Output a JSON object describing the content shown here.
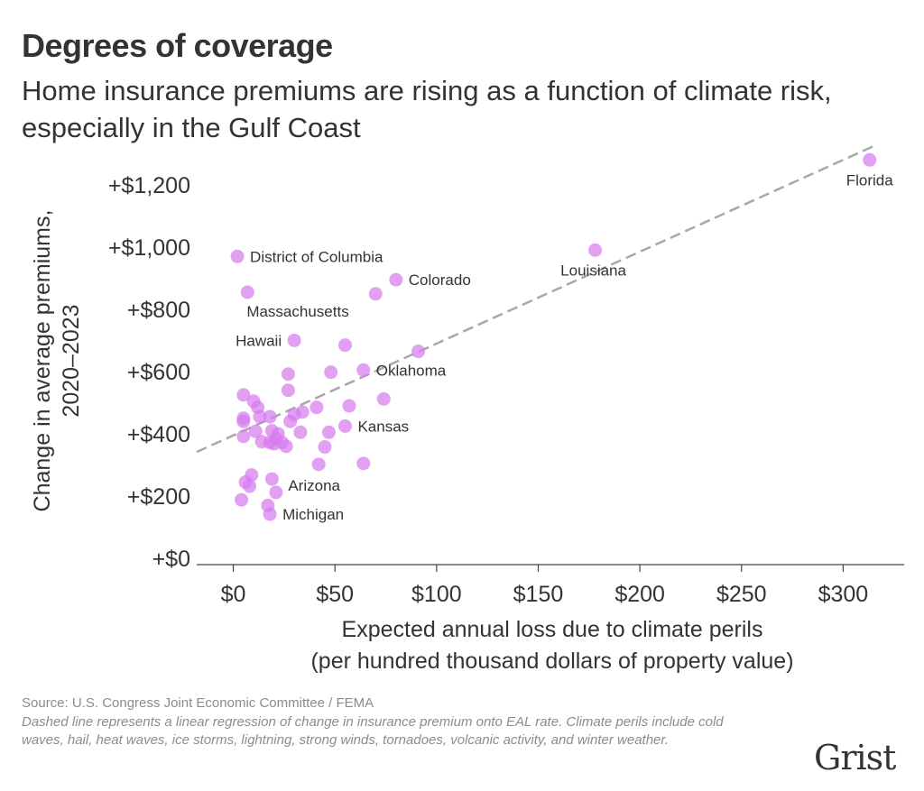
{
  "header": {
    "title": "Degrees of coverage",
    "subtitle": "Home insurance premiums are rising as a function of climate risk, especially in the Gulf Coast"
  },
  "chart_data": {
    "type": "scatter",
    "title": "Degrees of coverage",
    "subtitle": "Home insurance premiums are rising as a function of climate risk, especially in the Gulf Coast",
    "xlabel": [
      "Expected annual loss due to climate perils",
      "(per hundred thousand dollars of property value)"
    ],
    "ylabel": [
      "Change in average premiums,",
      "2020–2023"
    ],
    "xlim": [
      -18,
      330
    ],
    "ylim": [
      -20,
      1330
    ],
    "x_ticks": [
      0,
      50,
      100,
      150,
      200,
      250,
      300
    ],
    "x_tick_labels": [
      "$0",
      "$50",
      "$100",
      "$150",
      "$200",
      "$250",
      "$300"
    ],
    "y_ticks": [
      0,
      200,
      400,
      600,
      800,
      1000,
      1200
    ],
    "y_tick_labels": [
      "+$0",
      "+$200",
      "+$400",
      "+$600",
      "+$800",
      "+$1,000",
      "+$1,200"
    ],
    "grid": false,
    "point_color": "#d77bee",
    "regression_line": {
      "style": "dashed",
      "color": "#a8a8a8",
      "intercept": 395,
      "slope": 2.95
    },
    "points": [
      {
        "x": 313,
        "y": 1280,
        "label": "Florida"
      },
      {
        "x": 178,
        "y": 990,
        "label": "Louisiana"
      },
      {
        "x": 2,
        "y": 970,
        "label": "District of Columbia"
      },
      {
        "x": 80,
        "y": 895,
        "label": "Colorado"
      },
      {
        "x": 7,
        "y": 855,
        "label": "Massachusetts"
      },
      {
        "x": 70,
        "y": 850
      },
      {
        "x": 30,
        "y": 700,
        "label": "Hawaii"
      },
      {
        "x": 55,
        "y": 685
      },
      {
        "x": 91,
        "y": 665
      },
      {
        "x": 64,
        "y": 605,
        "label": "Oklahoma"
      },
      {
        "x": 48,
        "y": 598
      },
      {
        "x": 27,
        "y": 592
      },
      {
        "x": 27,
        "y": 540
      },
      {
        "x": 5,
        "y": 525
      },
      {
        "x": 74,
        "y": 512
      },
      {
        "x": 10,
        "y": 505
      },
      {
        "x": 12,
        "y": 485
      },
      {
        "x": 57,
        "y": 490
      },
      {
        "x": 41,
        "y": 485
      },
      {
        "x": 34,
        "y": 470
      },
      {
        "x": 30,
        "y": 462
      },
      {
        "x": 5,
        "y": 450
      },
      {
        "x": 13,
        "y": 455
      },
      {
        "x": 18,
        "y": 455
      },
      {
        "x": 5,
        "y": 440
      },
      {
        "x": 28,
        "y": 440
      },
      {
        "x": 55,
        "y": 425,
        "label": "Kansas"
      },
      {
        "x": 11,
        "y": 408
      },
      {
        "x": 19,
        "y": 410
      },
      {
        "x": 33,
        "y": 405
      },
      {
        "x": 47,
        "y": 405
      },
      {
        "x": 22,
        "y": 400
      },
      {
        "x": 5,
        "y": 392
      },
      {
        "x": 21,
        "y": 385
      },
      {
        "x": 14,
        "y": 375
      },
      {
        "x": 18,
        "y": 372
      },
      {
        "x": 20,
        "y": 368
      },
      {
        "x": 24,
        "y": 372
      },
      {
        "x": 26,
        "y": 360
      },
      {
        "x": 45,
        "y": 358
      },
      {
        "x": 42,
        "y": 302
      },
      {
        "x": 64,
        "y": 305
      },
      {
        "x": 9,
        "y": 268
      },
      {
        "x": 19,
        "y": 255,
        "label": "Arizona"
      },
      {
        "x": 6,
        "y": 245
      },
      {
        "x": 8,
        "y": 232
      },
      {
        "x": 21,
        "y": 212
      },
      {
        "x": 4,
        "y": 188
      },
      {
        "x": 17,
        "y": 170
      },
      {
        "x": 18,
        "y": 142,
        "label": "Michigan"
      }
    ]
  },
  "footer": {
    "source": "Source: U.S. Congress Joint Economic Committee / FEMA",
    "note": "Dashed line represents a linear regression of change in insurance premium onto EAL rate. Climate perils include cold waves, hail, heat waves, ice storms, lightning, strong winds, tornadoes, volcanic activity, and winter weather."
  },
  "brand": {
    "logo_text": "Grist"
  }
}
